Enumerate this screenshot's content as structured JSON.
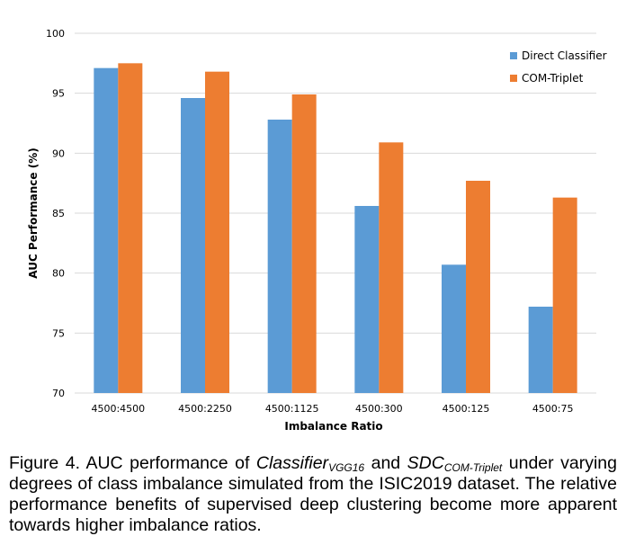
{
  "chart_data": {
    "type": "bar",
    "categories": [
      "4500:4500",
      "4500:2250",
      "4500:1125",
      "4500:300",
      "4500:125",
      "4500:75"
    ],
    "series": [
      {
        "name": "Direct Classifier",
        "color": "#5B9BD5",
        "values": [
          97.1,
          94.6,
          92.8,
          85.6,
          80.7,
          77.2
        ]
      },
      {
        "name": "COM-Triplet",
        "color": "#ED7D31",
        "values": [
          97.5,
          96.8,
          94.9,
          90.9,
          87.7,
          86.3
        ]
      }
    ],
    "xlabel": "Imbalance Ratio",
    "ylabel": "AUC Performance (%)",
    "ylim": [
      70,
      100
    ],
    "yticks": [
      70,
      75,
      80,
      85,
      90,
      95,
      100
    ],
    "grid": true,
    "legend_position": "top-right"
  },
  "caption": {
    "prefix": "Figure 4. AUC performance of ",
    "term1": "Classifier",
    "term1_sub": "VGG16",
    "joiner": " and ",
    "term2": "SDC",
    "term2_sub": "COM-Triplet",
    "suffix": " under varying degrees of class imbalance simulated from the ISIC2019 dataset. The relative performance benefits of supervised deep clustering become more apparent towards higher imbalance ratios."
  }
}
